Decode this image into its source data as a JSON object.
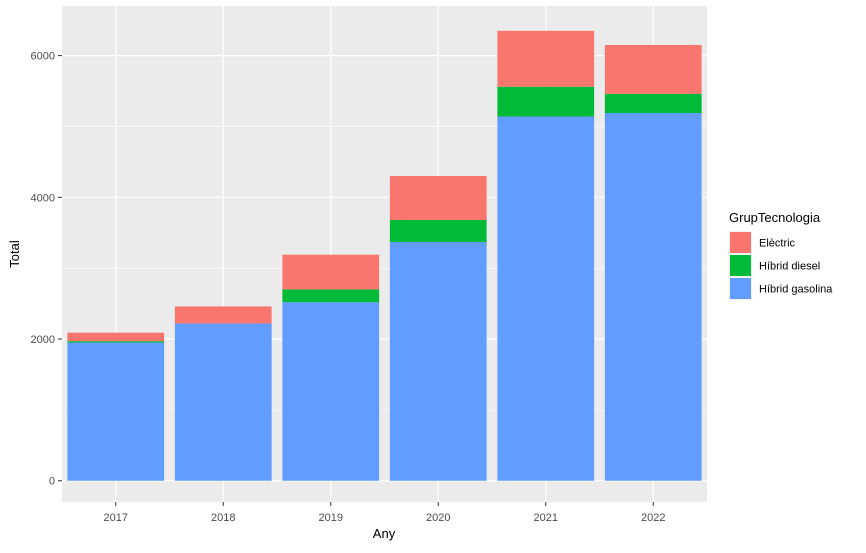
{
  "chart_data": {
    "type": "bar",
    "stacked": true,
    "xlabel": "Any",
    "ylabel": "Total",
    "categories": [
      "2017",
      "2018",
      "2019",
      "2020",
      "2021",
      "2022"
    ],
    "series": [
      {
        "name": "Híbrid gasolina",
        "color": "#619CFF",
        "values": [
          1950,
          2220,
          2520,
          3370,
          5140,
          5190
        ]
      },
      {
        "name": "Híbrid diesel",
        "color": "#00BA38",
        "values": [
          20,
          0,
          180,
          310,
          420,
          270
        ]
      },
      {
        "name": "Elèctric",
        "color": "#F8766D",
        "values": [
          120,
          240,
          490,
          620,
          790,
          690
        ]
      }
    ],
    "ylim": [
      -300,
      6700
    ],
    "yticks": [
      0,
      2000,
      4000,
      6000
    ],
    "legend": {
      "title": "GrupTecnologia",
      "position": "right",
      "entries": [
        {
          "name": "Elèctric",
          "color": "#F8766D"
        },
        {
          "name": "Híbrid diesel",
          "color": "#00BA38"
        },
        {
          "name": "Híbrid gasolina",
          "color": "#619CFF"
        }
      ]
    },
    "panel_background": "#EBEBEB",
    "grid": true,
    "grid_color": "#FFFFFF"
  }
}
